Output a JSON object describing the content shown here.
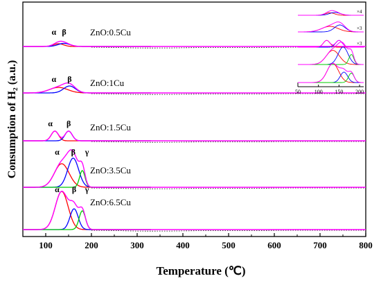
{
  "chart_data": {
    "type": "line",
    "xlabel": "Temperature (℃)",
    "ylabel": "Consumption of H₂ (a.u.)",
    "xlim": [
      50,
      800
    ],
    "xticks": [
      "100",
      "200",
      "300",
      "400",
      "500",
      "600",
      "700",
      "800"
    ],
    "grid": false,
    "colors": {
      "envelope": "#ff00ff",
      "alpha_peak": "#ff0000",
      "beta_peak": "#0000ff",
      "gamma_peak": "#00cc00",
      "measured": "#000000"
    },
    "samples": [
      {
        "name": "ZnO:0.5Cu",
        "peak_labels": [
          "α",
          "β"
        ],
        "peaks": [
          {
            "label": "α",
            "center": 128,
            "height": 4,
            "width": 11,
            "color": "#ff0000"
          },
          {
            "label": "β",
            "center": 140,
            "height": 4.5,
            "width": 13,
            "color": "#0000ff"
          }
        ]
      },
      {
        "name": "ZnO:1Cu",
        "peak_labels": [
          "α",
          "β"
        ],
        "peaks": [
          {
            "label": "α",
            "center": 128,
            "height": 8,
            "width": 20,
            "color": "#ff0000"
          },
          {
            "label": "β",
            "center": 152,
            "height": 10,
            "width": 13,
            "color": "#0000ff"
          }
        ]
      },
      {
        "name": "ZnO:1.5Cu",
        "peak_labels": [
          "α",
          "β"
        ],
        "peaks": [
          {
            "label": "α",
            "center": 120,
            "height": 14,
            "width": 8,
            "color": "#ff0000"
          },
          {
            "label": "β",
            "center": 150,
            "height": 14,
            "width": 8,
            "color": "#0000ff"
          }
        ]
      },
      {
        "name": "ZnO:3.5Cu",
        "peak_labels": [
          "α",
          "β",
          "γ"
        ],
        "peaks": [
          {
            "label": "α",
            "center": 135,
            "height": 34,
            "width": 16,
            "color": "#ff0000"
          },
          {
            "label": "β",
            "center": 160,
            "height": 42,
            "width": 12,
            "color": "#0000ff"
          },
          {
            "label": "γ",
            "center": 180,
            "height": 24,
            "width": 6,
            "color": "#00cc00"
          }
        ]
      },
      {
        "name": "ZnO:6.5Cu",
        "peak_labels": [
          "α",
          "β",
          "γ"
        ],
        "peaks": [
          {
            "label": "α",
            "center": 135,
            "height": 55,
            "width": 14,
            "color": "#ff0000"
          },
          {
            "label": "β",
            "center": 162,
            "height": 30,
            "width": 9,
            "color": "#0000ff"
          },
          {
            "label": "γ",
            "center": 180,
            "height": 27,
            "width": 7,
            "color": "#00cc00"
          }
        ]
      }
    ],
    "inset": {
      "xlim": [
        50,
        210
      ],
      "xticks": [
        "50",
        "100",
        "150",
        "200"
      ],
      "scale_labels": [
        "×4",
        "×3",
        "×3"
      ]
    }
  }
}
